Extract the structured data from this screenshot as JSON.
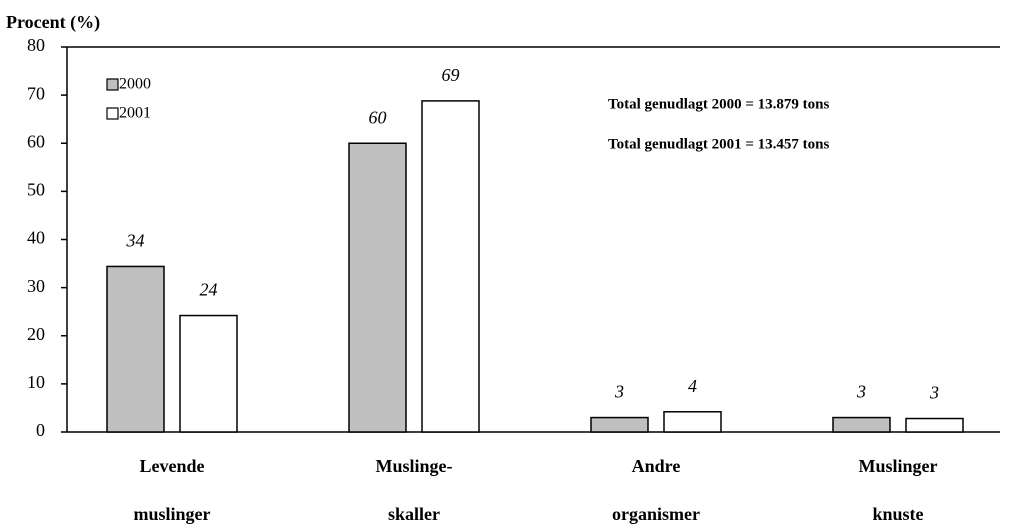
{
  "chart_data": {
    "type": "bar",
    "title": "Procent (%)",
    "categories": [
      [
        "Levende",
        "muslinger"
      ],
      [
        "Muslinge-",
        "skaller"
      ],
      [
        "Andre",
        "organismer"
      ],
      [
        "Muslinger",
        "knuste"
      ]
    ],
    "series": [
      {
        "name": "2000",
        "color": "#c0c0c0",
        "values": [
          34.4,
          60,
          3,
          3
        ],
        "value_labels": [
          "34",
          "60",
          "3",
          "3"
        ]
      },
      {
        "name": "2001",
        "color": "#ffffff",
        "values": [
          24.2,
          68.8,
          4.2,
          2.8
        ],
        "value_labels": [
          "24",
          "69",
          "4",
          "3"
        ]
      }
    ],
    "annotations": [
      "Total genudlagt 2000 = 13.879 tons",
      "Total genudlagt 2001 = 13.457 tons"
    ],
    "ylim": [
      0,
      80
    ],
    "yticks": [
      0,
      10,
      20,
      30,
      40,
      50,
      60,
      70,
      80
    ],
    "legend": "upper left"
  }
}
